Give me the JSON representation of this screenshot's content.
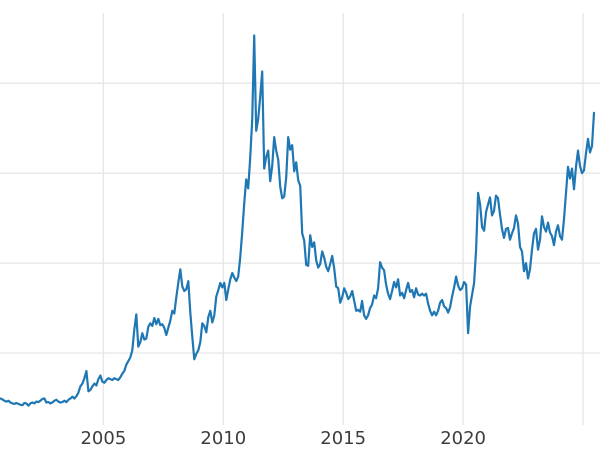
{
  "chart_data": {
    "type": "line",
    "title": "",
    "xlabel": "",
    "ylabel": "",
    "grid": true,
    "legend": "none",
    "background_color": "#ffffff",
    "line_color": "#1f77b4",
    "line_width": 2.2,
    "grid_color": "#e6e6e6",
    "tick_label_color": "#3d3d3d",
    "xlim": [
      2000.69,
      2025.71
    ],
    "ylim": [
      2.0,
      47.8
    ],
    "x_tick_labels": [
      {
        "label": "2005",
        "year": 2005
      },
      {
        "label": "2010",
        "year": 2010
      },
      {
        "label": "2015",
        "year": 2015
      },
      {
        "label": "2020",
        "year": 2020
      }
    ],
    "vertical_gridline_years": [
      2005,
      2010,
      2015,
      2020,
      2025
    ],
    "horizontal_gridline_values": [
      10,
      20,
      30,
      40
    ],
    "series": [
      {
        "name": "price",
        "start_year": 2000.7083,
        "step_years": 0.0833333,
        "values": [
          4.95,
          4.85,
          4.7,
          4.6,
          4.7,
          4.5,
          4.4,
          4.35,
          4.45,
          4.35,
          4.25,
          4.2,
          4.45,
          4.4,
          4.15,
          4.4,
          4.5,
          4.4,
          4.6,
          4.55,
          4.7,
          4.9,
          4.95,
          4.5,
          4.55,
          4.4,
          4.5,
          4.7,
          4.8,
          4.6,
          4.5,
          4.55,
          4.7,
          4.55,
          4.8,
          4.95,
          5.15,
          4.95,
          5.2,
          5.6,
          6.3,
          6.6,
          7.2,
          8.0,
          5.75,
          5.9,
          6.3,
          6.6,
          6.4,
          7.1,
          7.5,
          6.8,
          6.7,
          7.0,
          7.2,
          7.1,
          7.0,
          7.2,
          7.1,
          7.0,
          7.3,
          7.7,
          8.0,
          8.7,
          9.1,
          9.5,
          10.3,
          12.6,
          14.3,
          10.7,
          11.2,
          12.2,
          11.5,
          11.6,
          12.9,
          13.3,
          13.0,
          13.9,
          13.2,
          13.8,
          13.1,
          13.2,
          12.8,
          12.0,
          12.8,
          13.6,
          14.7,
          14.4,
          16.2,
          17.8,
          19.3,
          17.4,
          16.9,
          17.1,
          18.0,
          14.5,
          11.8,
          9.3,
          9.9,
          10.3,
          11.2,
          13.3,
          13.0,
          12.3,
          14.0,
          14.7,
          13.4,
          14.2,
          16.3,
          17.0,
          17.8,
          17.3,
          17.8,
          15.9,
          17.1,
          18.2,
          18.9,
          18.4,
          18.0,
          18.5,
          20.6,
          23.4,
          26.6,
          29.3,
          28.3,
          31.7,
          35.9,
          45.3,
          34.7,
          36.0,
          38.5,
          41.3,
          30.5,
          31.8,
          32.5,
          29.1,
          30.8,
          34.0,
          32.5,
          31.5,
          28.5,
          27.2,
          27.4,
          29.5,
          34.0,
          32.6,
          33.1,
          30.2,
          31.2,
          29.2,
          28.6,
          23.3,
          22.5,
          19.8,
          19.7,
          23.1,
          21.8,
          22.3,
          20.3,
          19.5,
          19.9,
          21.3,
          20.6,
          19.6,
          19.1,
          19.9,
          20.8,
          19.4,
          17.4,
          17.2,
          15.6,
          16.2,
          17.2,
          16.7,
          16.0,
          16.3,
          16.9,
          15.8,
          14.7,
          14.8,
          14.6,
          15.8,
          14.2,
          13.8,
          14.2,
          15.0,
          15.4,
          16.4,
          16.1,
          17.2,
          20.1,
          19.5,
          19.2,
          17.6,
          16.6,
          16.0,
          16.9,
          17.9,
          17.3,
          18.2,
          16.4,
          16.7,
          16.1,
          17.0,
          17.8,
          16.8,
          17.0,
          16.2,
          17.2,
          16.5,
          16.4,
          16.6,
          16.4,
          16.6,
          15.5,
          14.7,
          14.2,
          14.6,
          14.2,
          14.7,
          15.6,
          15.9,
          15.2,
          15.0,
          14.5,
          15.1,
          16.3,
          17.3,
          18.5,
          17.5,
          17.0,
          17.2,
          17.9,
          17.6,
          12.2,
          15.2,
          16.5,
          17.8,
          21.5,
          27.8,
          26.5,
          24.0,
          23.6,
          25.7,
          26.5,
          27.3,
          25.3,
          25.8,
          27.5,
          27.2,
          25.4,
          23.8,
          22.8,
          23.8,
          23.9,
          22.6,
          23.3,
          23.9,
          25.3,
          24.4,
          21.8,
          21.3,
          19.1,
          20.0,
          18.3,
          19.3,
          21.5,
          23.3,
          23.8,
          21.5,
          22.6,
          25.2,
          24.0,
          23.5,
          24.5,
          23.4,
          23.0,
          22.0,
          23.5,
          24.2,
          23.0,
          22.6,
          24.9,
          27.8,
          30.7,
          29.4,
          30.5,
          28.2,
          30.7,
          32.5,
          30.8,
          30.0,
          30.3,
          32.2,
          33.8,
          32.3,
          33.0,
          36.7
        ]
      }
    ]
  }
}
